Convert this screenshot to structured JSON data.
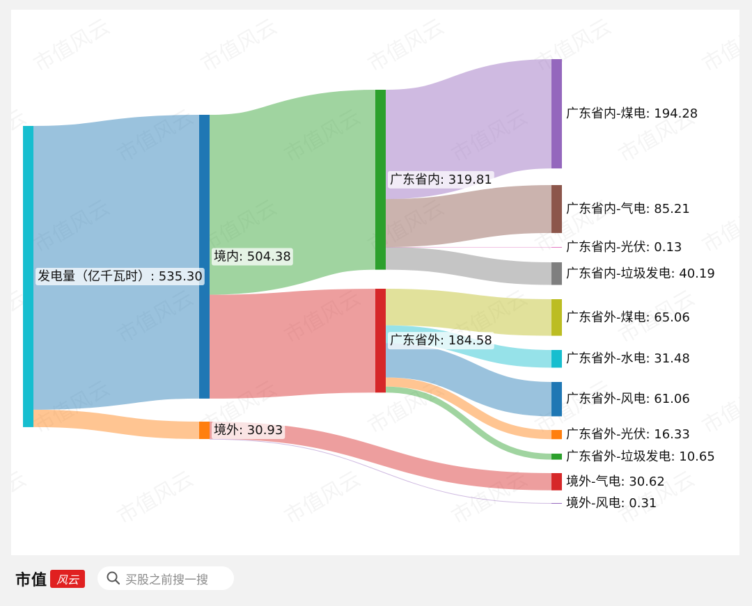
{
  "chart_data": {
    "type": "sankey",
    "nodes": [
      {
        "id": "total",
        "label": "发电量（亿千瓦时）",
        "value": 535.3,
        "color": "#17becf"
      },
      {
        "id": "domestic",
        "label": "境内",
        "value": 504.38,
        "color": "#1f77b4"
      },
      {
        "id": "overseas",
        "label": "境外",
        "value": 30.93,
        "color": "#ff7f0e"
      },
      {
        "id": "gd_in",
        "label": "广东省内",
        "value": 319.81,
        "color": "#2ca02c"
      },
      {
        "id": "gd_out",
        "label": "广东省外",
        "value": 184.58,
        "color": "#d62728"
      },
      {
        "id": "in_coal",
        "label": "广东省内-煤电",
        "value": 194.28,
        "color": "#9467bd"
      },
      {
        "id": "in_gas",
        "label": "广东省内-气电",
        "value": 85.21,
        "color": "#8c564b"
      },
      {
        "id": "in_pv",
        "label": "广东省内-光伏",
        "value": 0.13,
        "color": "#e377c2"
      },
      {
        "id": "in_waste",
        "label": "广东省内-垃圾发电",
        "value": 40.19,
        "color": "#7f7f7f"
      },
      {
        "id": "out_coal",
        "label": "广东省外-煤电",
        "value": 65.06,
        "color": "#bcbd22"
      },
      {
        "id": "out_hydro",
        "label": "广东省外-水电",
        "value": 31.48,
        "color": "#17becf"
      },
      {
        "id": "out_wind",
        "label": "广东省外-风电",
        "value": 61.06,
        "color": "#1f77b4"
      },
      {
        "id": "out_pv",
        "label": "广东省外-光伏",
        "value": 16.33,
        "color": "#ff7f0e"
      },
      {
        "id": "out_waste",
        "label": "广东省外-垃圾发电",
        "value": 10.65,
        "color": "#2ca02c"
      },
      {
        "id": "os_gas",
        "label": "境外-气电",
        "value": 30.62,
        "color": "#d62728"
      },
      {
        "id": "os_wind",
        "label": "境外-风电",
        "value": 0.31,
        "color": "#9467bd"
      }
    ],
    "links": [
      {
        "source": "total",
        "target": "domestic",
        "value": 504.38,
        "color": "#1f77b4"
      },
      {
        "source": "total",
        "target": "overseas",
        "value": 30.93,
        "color": "#ff7f0e"
      },
      {
        "source": "domestic",
        "target": "gd_in",
        "value": 319.81,
        "color": "#2ca02c"
      },
      {
        "source": "domestic",
        "target": "gd_out",
        "value": 184.58,
        "color": "#d62728"
      },
      {
        "source": "gd_in",
        "target": "in_coal",
        "value": 194.28,
        "color": "#9467bd"
      },
      {
        "source": "gd_in",
        "target": "in_gas",
        "value": 85.21,
        "color": "#8c564b"
      },
      {
        "source": "gd_in",
        "target": "in_pv",
        "value": 0.13,
        "color": "#e377c2"
      },
      {
        "source": "gd_in",
        "target": "in_waste",
        "value": 40.19,
        "color": "#7f7f7f"
      },
      {
        "source": "gd_out",
        "target": "out_coal",
        "value": 65.06,
        "color": "#bcbd22"
      },
      {
        "source": "gd_out",
        "target": "out_hydro",
        "value": 31.48,
        "color": "#17becf"
      },
      {
        "source": "gd_out",
        "target": "out_wind",
        "value": 61.06,
        "color": "#1f77b4"
      },
      {
        "source": "gd_out",
        "target": "out_pv",
        "value": 16.33,
        "color": "#ff7f0e"
      },
      {
        "source": "gd_out",
        "target": "out_waste",
        "value": 10.65,
        "color": "#2ca02c"
      },
      {
        "source": "overseas",
        "target": "os_gas",
        "value": 30.62,
        "color": "#d62728"
      },
      {
        "source": "overseas",
        "target": "os_wind",
        "value": 0.31,
        "color": "#9467bd"
      }
    ]
  },
  "watermark": {
    "text": "市值风云"
  },
  "footer": {
    "brand_text": "市值",
    "brand_seal": "风云",
    "search_icon": "search-icon",
    "search_placeholder": "买股之前搜一搜"
  }
}
